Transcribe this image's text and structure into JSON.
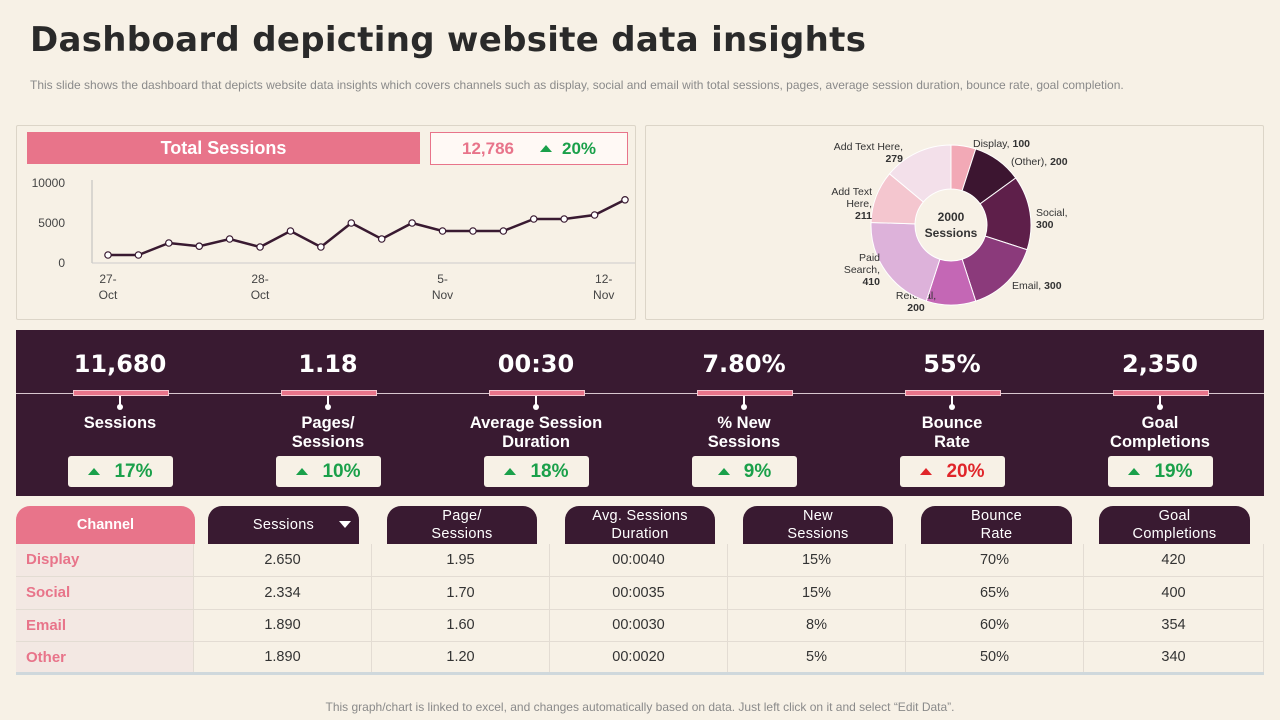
{
  "page": {
    "title": "Dashboard depicting website data insights",
    "subtitle": "This slide shows the dashboard that depicts website data insights which covers channels such as display, social and email with total sessions, pages, average session duration, bounce rate, goal completion.",
    "footer": "This graph/chart is linked to excel,  and changes automatically based on data. Just left click on it and select “Edit Data”."
  },
  "total_sessions": {
    "label": "Total Sessions",
    "value": "12,786",
    "change": "20%"
  },
  "colors": {
    "pink": "#e8748a",
    "dark": "#391a31",
    "green": "#1aa04a",
    "red": "#e0252a"
  },
  "metrics": [
    {
      "value": "11,680",
      "label_line1": "Sessions",
      "label_line2": "",
      "change": "17%",
      "trend": "up-good"
    },
    {
      "value": "1.18",
      "label_line1": "Pages/",
      "label_line2": "Sessions",
      "change": "10%",
      "trend": "up-good"
    },
    {
      "value": "00:30",
      "label_line1": "Average Session",
      "label_line2": "Duration",
      "change": "18%",
      "trend": "up-good"
    },
    {
      "value": "7.80%",
      "label_line1": "% New",
      "label_line2": "Sessions",
      "change": "9%",
      "trend": "up-good"
    },
    {
      "value": "55%",
      "label_line1": "Bounce",
      "label_line2": "Rate",
      "change": "20%",
      "trend": "up-bad"
    },
    {
      "value": "2,350",
      "label_line1": "Goal",
      "label_line2": "Completions",
      "change": "19%",
      "trend": "up-good"
    }
  ],
  "table": {
    "headers": [
      {
        "line1": "Channel",
        "line2": ""
      },
      {
        "line1": "Sessions",
        "line2": ""
      },
      {
        "line1": "Page/",
        "line2": "Sessions"
      },
      {
        "line1": "Avg. Sessions",
        "line2": "Duration"
      },
      {
        "line1": "New",
        "line2": "Sessions"
      },
      {
        "line1": "Bounce",
        "line2": "Rate"
      },
      {
        "line1": "Goal",
        "line2": "Completions"
      }
    ],
    "rows": [
      [
        "Display",
        "2.650",
        "1.95",
        "00:0040",
        "15%",
        "70%",
        "420"
      ],
      [
        "Social",
        "2.334",
        "1.70",
        "00:0035",
        "15%",
        "65%",
        "400"
      ],
      [
        "Email",
        "1.890",
        "1.60",
        "00:0030",
        "8%",
        "60%",
        "354"
      ],
      [
        "Other",
        "1.890",
        "1.20",
        "00:0020",
        "5%",
        "50%",
        "340"
      ]
    ]
  },
  "chart_data": [
    {
      "type": "line",
      "title": "Total Sessions",
      "x_tick_labels": [
        [
          "27-",
          "Oct"
        ],
        [
          "28-",
          "Oct"
        ],
        [
          "5-",
          "Nov"
        ],
        [
          "12-",
          "Nov"
        ]
      ],
      "y_ticks": [
        0,
        5000,
        10000
      ],
      "y_tick_labels": [
        "0",
        "5000",
        "10000"
      ],
      "ylim": [
        0,
        10000
      ],
      "values": [
        1000,
        1000,
        2500,
        2100,
        3000,
        2000,
        4000,
        2000,
        5000,
        3000,
        5000,
        4000,
        4000,
        4000,
        5500,
        5500,
        6000,
        7900
      ],
      "grid": false
    },
    {
      "type": "pie",
      "donut": true,
      "center_label_line1": "2000",
      "center_label_line2": "Sessions",
      "slices": [
        {
          "name_lines": [
            "Display, "
          ],
          "value": 100,
          "color": "#f2a9b6"
        },
        {
          "name_lines": [
            "(Other), "
          ],
          "value": 200,
          "color": "#3c1530"
        },
        {
          "name_lines": [
            "Social,"
          ],
          "value": 300,
          "color": "#5e1f4a"
        },
        {
          "name_lines": [
            "Email,  "
          ],
          "value": 300,
          "color": "#8b3a7b"
        },
        {
          "name_lines": [
            "Referral,"
          ],
          "value": 200,
          "color": "#c467b5"
        },
        {
          "name_lines": [
            "Paid",
            "Search,"
          ],
          "value": 410,
          "color": "#ddb2da"
        },
        {
          "name_lines": [
            "Add Text",
            "Here,"
          ],
          "value": 211,
          "color": "#f4c6cf"
        },
        {
          "name_lines": [
            "Add Text Here,"
          ],
          "value": 279,
          "color": "#f3e0ea"
        }
      ]
    }
  ]
}
